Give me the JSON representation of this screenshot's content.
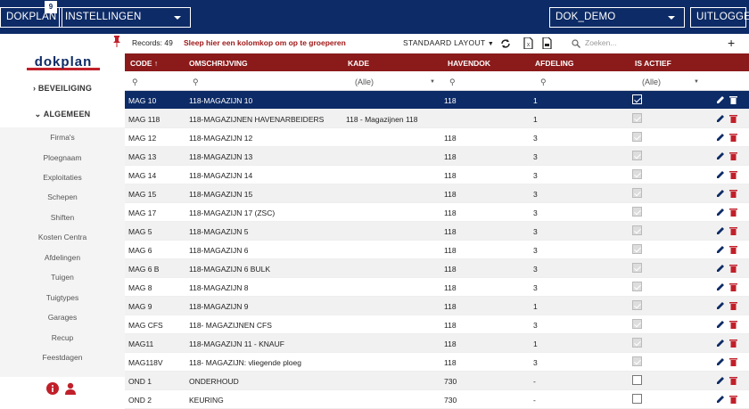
{
  "topbar": {
    "app_label": "DOKPLAN",
    "badge": "9",
    "menu_label": "INSTELLINGEN",
    "database": "DOK_DEMO",
    "logout_label": "UITLOGGEN"
  },
  "sidebar": {
    "logo_text": "dokplan",
    "sections": [
      {
        "label": "BEVEILIGING",
        "marker": "›"
      },
      {
        "label": "ALGEMEEN",
        "marker": "⌄"
      }
    ],
    "items": [
      "Firma's",
      "Ploegnaam",
      "Exploitaties",
      "Schepen",
      "Shiften",
      "Kosten Centra",
      "Afdelingen",
      "Tuigen",
      "Tuigtypes",
      "Garages",
      "Recup",
      "Feestdagen"
    ]
  },
  "toolbar": {
    "records": "Records: 49",
    "group_hint": "Sleep hier een kolomkop om op te groeperen",
    "layout_label": "STANDAARD LAYOUT",
    "search_placeholder": "Zoeken...",
    "add_label": "+"
  },
  "columns": [
    "CODE ↑",
    "OMSCHRIJVING",
    "KADE",
    "HAVENDOK",
    "AFDELING",
    "IS ACTIEF"
  ],
  "filters": {
    "kade": "(Alle)",
    "actief": "(Alle)"
  },
  "rows": [
    {
      "code": "MAG 10",
      "omschrijving": "118-MAGAZIJN 10",
      "kade": "",
      "havendok": "118",
      "afdeling": "1",
      "actief": "checked",
      "selected": true
    },
    {
      "code": "MAG 118",
      "omschrijving": "118-MAGAZIJNEN HAVENARBEIDERS",
      "kade": "118 - Magazijnen 118",
      "havendok": "",
      "afdeling": "1",
      "actief": "checked"
    },
    {
      "code": "MAG 12",
      "omschrijving": "118-MAGAZIJN 12",
      "kade": "",
      "havendok": "118",
      "afdeling": "3",
      "actief": "checked"
    },
    {
      "code": "MAG 13",
      "omschrijving": "118-MAGAZIJN 13",
      "kade": "",
      "havendok": "118",
      "afdeling": "3",
      "actief": "checked"
    },
    {
      "code": "MAG 14",
      "omschrijving": "118-MAGAZIJN 14",
      "kade": "",
      "havendok": "118",
      "afdeling": "3",
      "actief": "checked"
    },
    {
      "code": "MAG 15",
      "omschrijving": "118-MAGAZIJN 15",
      "kade": "",
      "havendok": "118",
      "afdeling": "3",
      "actief": "checked"
    },
    {
      "code": "MAG 17",
      "omschrijving": "118-MAGAZIJN 17 (ZSC)",
      "kade": "",
      "havendok": "118",
      "afdeling": "3",
      "actief": "checked"
    },
    {
      "code": "MAG 5",
      "omschrijving": "118-MAGAZIJN 5",
      "kade": "",
      "havendok": "118",
      "afdeling": "3",
      "actief": "checked"
    },
    {
      "code": "MAG 6",
      "omschrijving": "118-MAGAZIJN 6",
      "kade": "",
      "havendok": "118",
      "afdeling": "3",
      "actief": "checked"
    },
    {
      "code": "MAG 6 B",
      "omschrijving": "118-MAGAZIJN 6 BULK",
      "kade": "",
      "havendok": "118",
      "afdeling": "3",
      "actief": "checked"
    },
    {
      "code": "MAG 8",
      "omschrijving": "118-MAGAZIJN 8",
      "kade": "",
      "havendok": "118",
      "afdeling": "3",
      "actief": "checked"
    },
    {
      "code": "MAG 9",
      "omschrijving": "118-MAGAZIJN 9",
      "kade": "",
      "havendok": "118",
      "afdeling": "1",
      "actief": "checked"
    },
    {
      "code": "MAG CFS",
      "omschrijving": "118- MAGAZIJNEN CFS",
      "kade": "",
      "havendok": "118",
      "afdeling": "3",
      "actief": "checked"
    },
    {
      "code": "MAG11",
      "omschrijving": "118-MAGAZIJN 11 - KNAUF",
      "kade": "",
      "havendok": "118",
      "afdeling": "1",
      "actief": "checked"
    },
    {
      "code": "MAG118V",
      "omschrijving": "118- MAGAZIJN: vliegende ploeg",
      "kade": "",
      "havendok": "118",
      "afdeling": "3",
      "actief": "checked"
    },
    {
      "code": "OND 1",
      "omschrijving": "ONDERHOUD",
      "kade": "",
      "havendok": "730",
      "afdeling": "-",
      "actief": "empty"
    },
    {
      "code": "OND 2",
      "omschrijving": "KEURING",
      "kade": "",
      "havendok": "730",
      "afdeling": "-",
      "actief": "empty"
    }
  ],
  "colors": {
    "navy": "#0d2b66",
    "header_red": "#8b1a1a",
    "danger": "#c0202a"
  }
}
